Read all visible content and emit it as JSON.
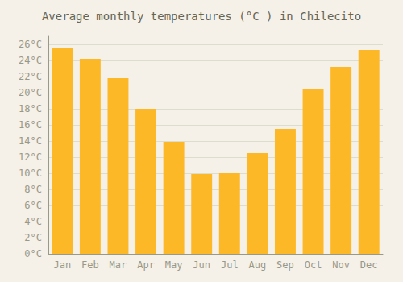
{
  "chart_data": {
    "type": "bar",
    "title": "Average monthly temperatures (°C ) in Chilecito",
    "categories": [
      "Jan",
      "Feb",
      "Mar",
      "Apr",
      "May",
      "Jun",
      "Jul",
      "Aug",
      "Sep",
      "Oct",
      "Nov",
      "Dec"
    ],
    "values": [
      25.5,
      24.2,
      21.8,
      18.0,
      13.9,
      9.9,
      10.0,
      12.5,
      15.5,
      20.5,
      23.2,
      25.3
    ],
    "color": "#FDB827",
    "ylim": [
      0,
      27
    ],
    "yticks": [
      {
        "value": 0,
        "label": "0°C"
      },
      {
        "value": 2,
        "label": "2°C"
      },
      {
        "value": 4,
        "label": "4°C"
      },
      {
        "value": 6,
        "label": "6°C"
      },
      {
        "value": 8,
        "label": "8°C"
      },
      {
        "value": 10,
        "label": "10°C"
      },
      {
        "value": 12,
        "label": "12°C"
      },
      {
        "value": 14,
        "label": "14°C"
      },
      {
        "value": 16,
        "label": "16°C"
      },
      {
        "value": 18,
        "label": "18°C"
      },
      {
        "value": 20,
        "label": "20°C"
      },
      {
        "value": 22,
        "label": "22°C"
      },
      {
        "value": 24,
        "label": "24°C"
      },
      {
        "value": 26,
        "label": "26°C"
      }
    ],
    "grid": true
  }
}
